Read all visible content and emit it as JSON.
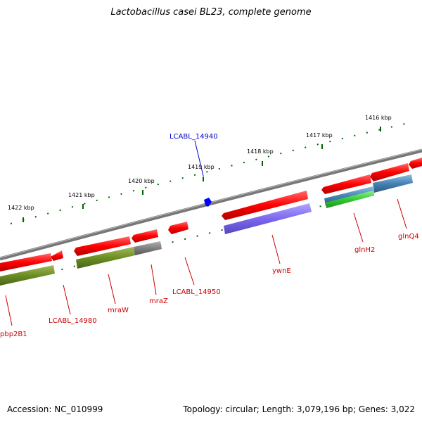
{
  "title": "Lactobacillus casei BL23, complete genome",
  "accession": "Accession: NC_010999",
  "summary": "Topology: circular; Length: 3,079,196 bp; Genes: 3,022",
  "ticks": [
    "1422 kbp",
    "1421 kbp",
    "1420 kbp",
    "1419 kbp",
    "1418 kbp",
    "1417 kbp",
    "1416 kbp"
  ],
  "genes": {
    "pbp2B1": "pbp2B1",
    "LCABL_14980": "LCABL_14980",
    "mraW": "mraW",
    "mraZ": "mraZ",
    "LCABL_14950": "LCABL_14950",
    "LCABL_14940": "LCABL_14940",
    "ywnE": "ywnE",
    "glnH2": "glnH2",
    "glnQ4": "glnQ4"
  },
  "colors": {
    "backbone": "#808080",
    "cds": "#ff0000",
    "highlight": "#0000ff",
    "cog_olive": "#6b8e23",
    "cog_purple": "#7b68ee",
    "cog_gray": "#808080",
    "cog_steelblue": "#4682b4",
    "cog_green": "#32cd32",
    "tick": "#006400"
  }
}
